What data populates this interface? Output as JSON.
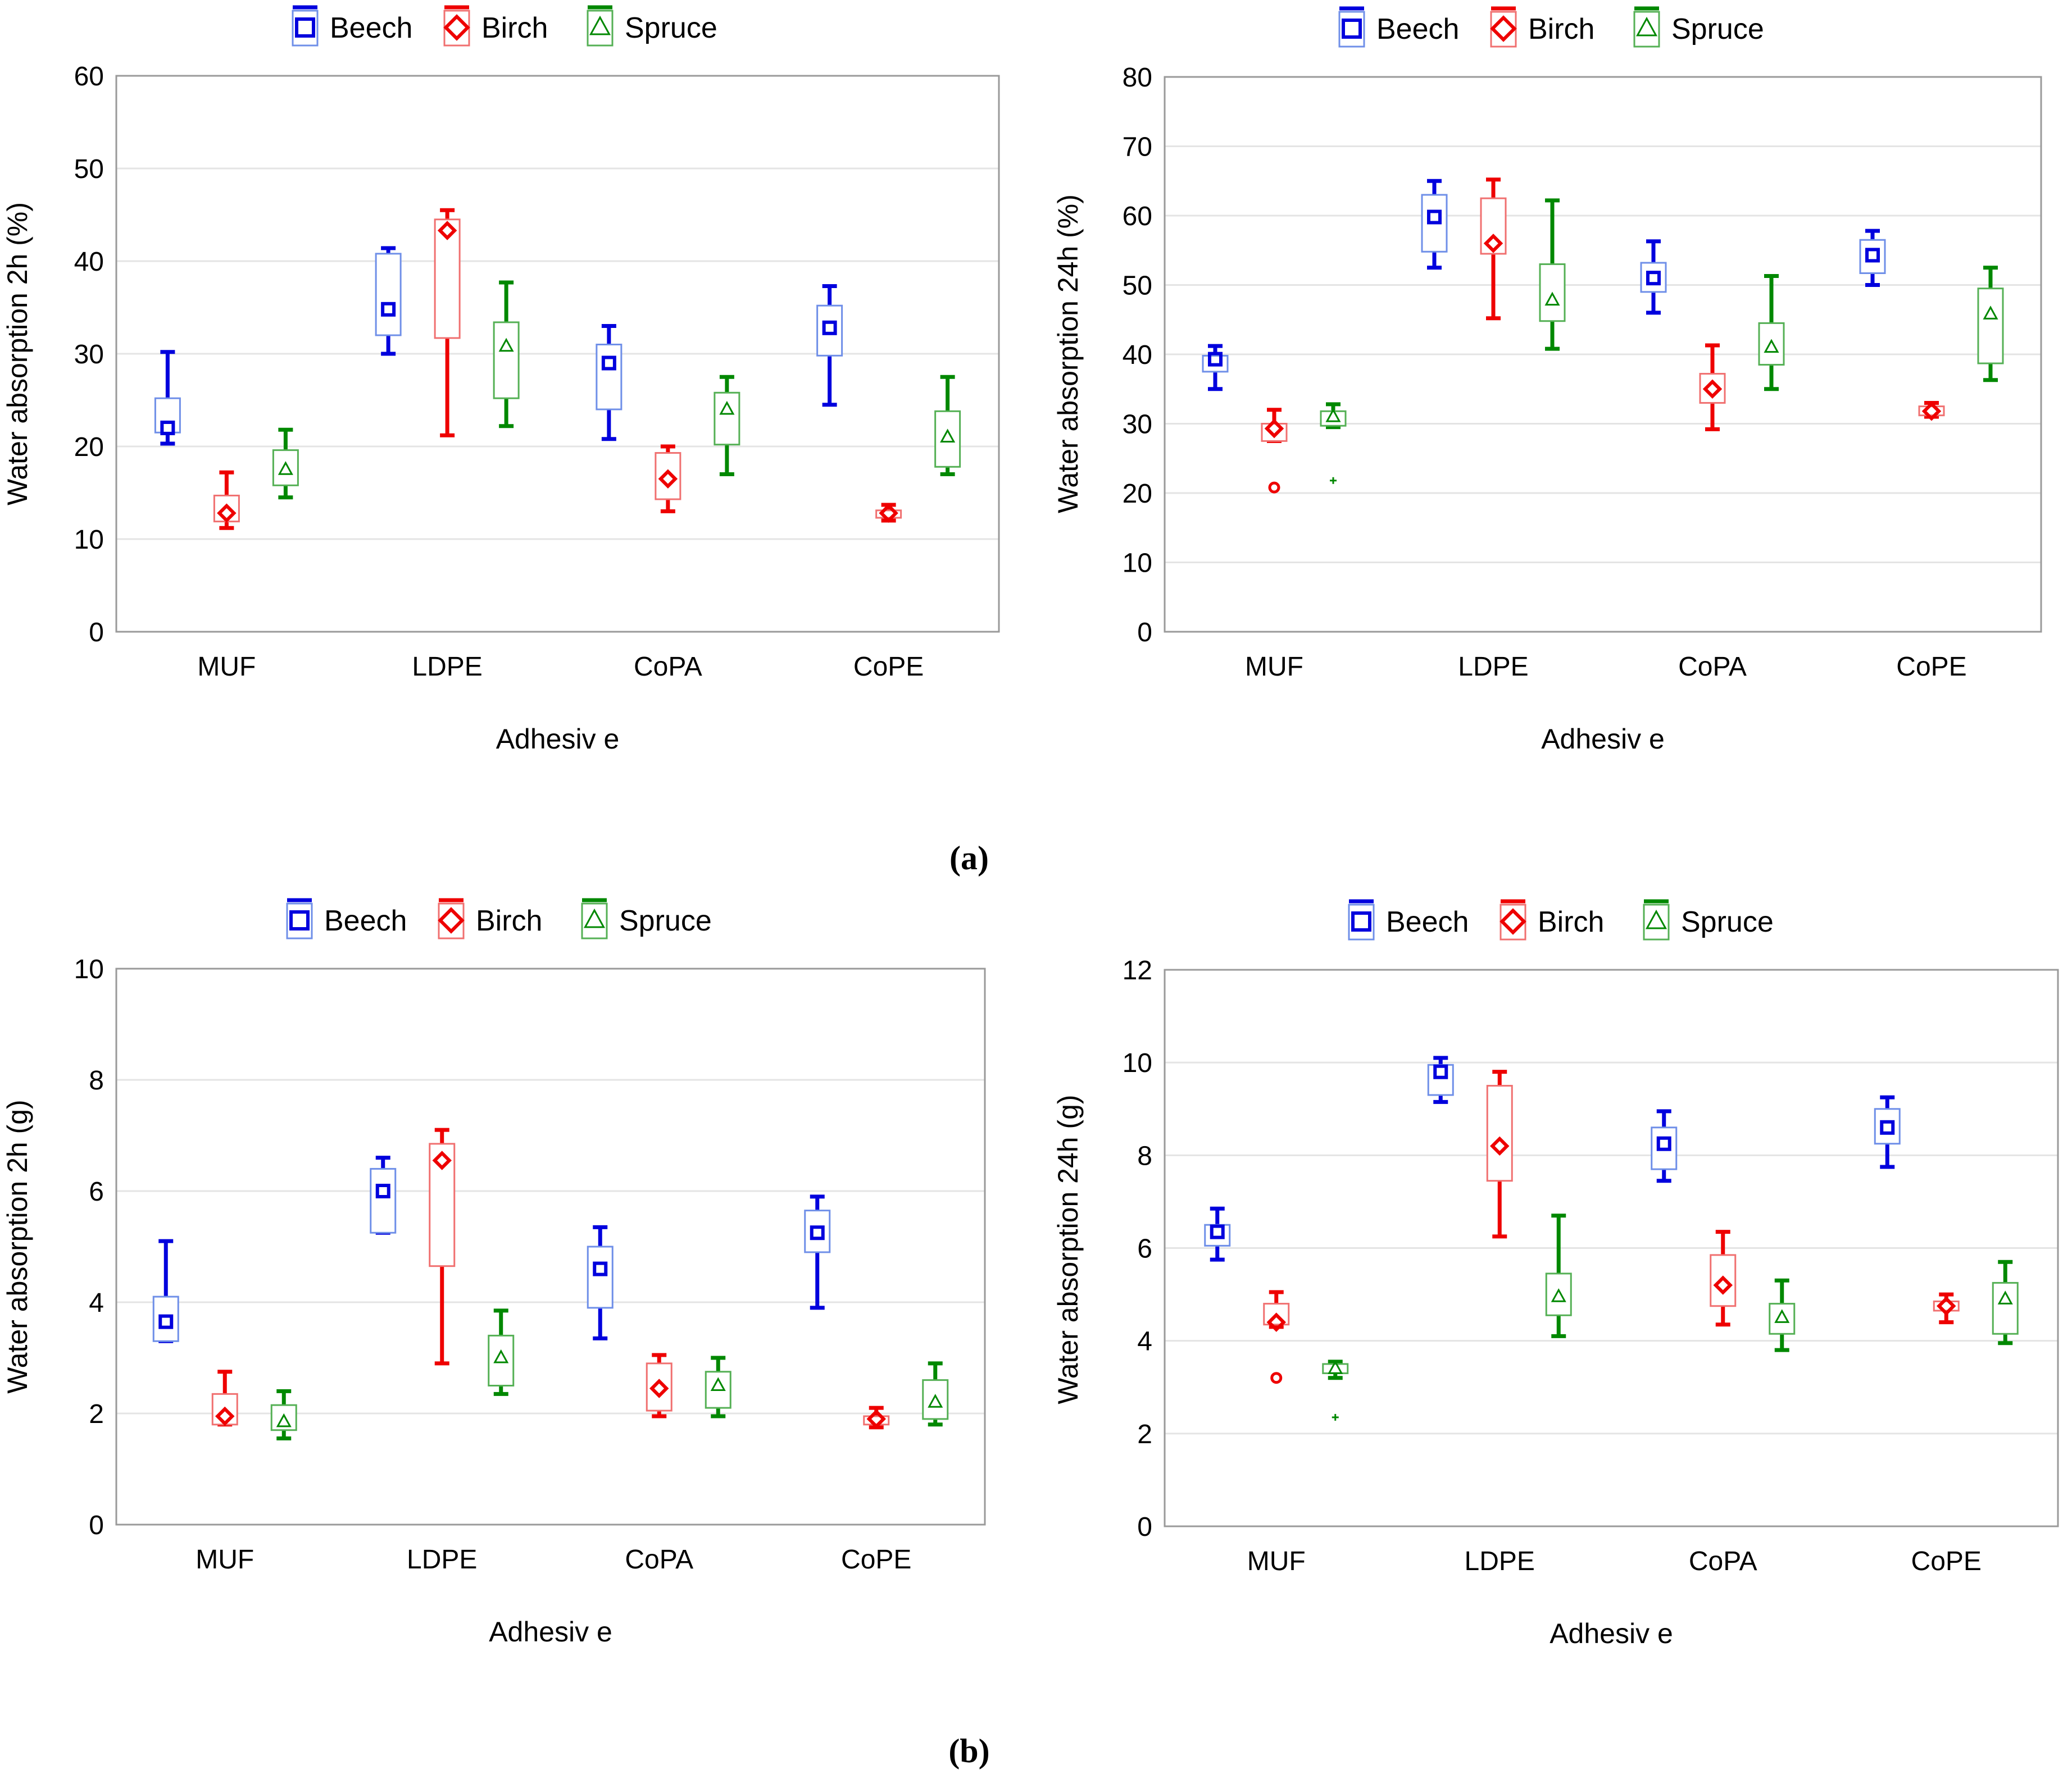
{
  "colors": {
    "beech": "#0000dd",
    "birch": "#ee0000",
    "spruce": "#008800",
    "beech_box": "#6f8fe8",
    "birch_box": "#f07070",
    "spruce_box": "#55b055",
    "grid": "#e4e4e4",
    "axis": "#9a9a9a"
  },
  "panel_labels": {
    "a": "(a)",
    "b": "(b)"
  },
  "chart_data": [
    {
      "type": "box",
      "title": "",
      "xlabel": "Adhesiv e",
      "ylabel": "Water absorption 2h (%)",
      "ylim": [
        0,
        60
      ],
      "yticks": [
        0,
        10,
        20,
        30,
        40,
        50,
        60
      ],
      "categories": [
        "MUF",
        "LDPE",
        "CoPA",
        "CoPE"
      ],
      "legend": [
        "Beech",
        "Birch",
        "Spruce"
      ],
      "series": [
        {
          "name": "Beech",
          "marker": "square",
          "boxes": [
            {
              "min": 20.3,
              "q1": 21.5,
              "median": 22.0,
              "q3": 25.2,
              "max": 30.2,
              "outliers": []
            },
            {
              "min": 30.0,
              "q1": 32.0,
              "median": 34.8,
              "q3": 40.8,
              "max": 41.4,
              "outliers": []
            },
            {
              "min": 20.8,
              "q1": 24.0,
              "median": 29.0,
              "q3": 31.0,
              "max": 33.0,
              "outliers": []
            },
            {
              "min": 24.5,
              "q1": 29.8,
              "median": 32.8,
              "q3": 35.2,
              "max": 37.3,
              "outliers": []
            }
          ]
        },
        {
          "name": "Birch",
          "marker": "diamond",
          "boxes": [
            {
              "min": 11.2,
              "q1": 11.9,
              "median": 12.8,
              "q3": 14.7,
              "max": 17.2,
              "outliers": []
            },
            {
              "min": 21.2,
              "q1": 31.7,
              "median": 43.3,
              "q3": 44.5,
              "max": 45.5,
              "outliers": []
            },
            {
              "min": 13.0,
              "q1": 14.3,
              "median": 16.5,
              "q3": 19.3,
              "max": 20.0,
              "outliers": []
            },
            {
              "min": 12.0,
              "q1": 12.3,
              "median": 12.8,
              "q3": 13.1,
              "max": 13.7,
              "outliers": []
            }
          ]
        },
        {
          "name": "Spruce",
          "marker": "triangle",
          "boxes": [
            {
              "min": 14.5,
              "q1": 15.8,
              "median": 17.5,
              "q3": 19.6,
              "max": 21.8,
              "outliers": []
            },
            {
              "min": 22.2,
              "q1": 25.2,
              "median": 30.8,
              "q3": 33.4,
              "max": 37.7,
              "outliers": []
            },
            {
              "min": 17.0,
              "q1": 20.2,
              "median": 24.0,
              "q3": 25.8,
              "max": 27.5,
              "outliers": []
            },
            {
              "min": 17.0,
              "q1": 17.8,
              "median": 21.0,
              "q3": 23.8,
              "max": 27.5,
              "outliers": []
            }
          ]
        }
      ]
    },
    {
      "type": "box",
      "title": "",
      "xlabel": "Adhesiv e",
      "ylabel": "Water absorption 24h (%)",
      "ylim": [
        0,
        80
      ],
      "yticks": [
        0,
        10,
        20,
        30,
        40,
        50,
        60,
        70,
        80
      ],
      "categories": [
        "MUF",
        "LDPE",
        "CoPA",
        "CoPE"
      ],
      "legend": [
        "Beech",
        "Birch",
        "Spruce"
      ],
      "series": [
        {
          "name": "Beech",
          "marker": "square",
          "boxes": [
            {
              "min": 35.0,
              "q1": 37.5,
              "median": 39.3,
              "q3": 39.8,
              "max": 41.2,
              "outliers": []
            },
            {
              "min": 52.5,
              "q1": 54.8,
              "median": 59.8,
              "q3": 63.0,
              "max": 65.0,
              "outliers": []
            },
            {
              "min": 46.0,
              "q1": 49.0,
              "median": 51.0,
              "q3": 53.2,
              "max": 56.3,
              "outliers": []
            },
            {
              "min": 50.0,
              "q1": 51.7,
              "median": 54.3,
              "q3": 56.5,
              "max": 57.8,
              "outliers": []
            }
          ]
        },
        {
          "name": "Birch",
          "marker": "diamond",
          "boxes": [
            {
              "min": 27.5,
              "q1": 27.5,
              "median": 29.3,
              "q3": 30.0,
              "max": 32.0,
              "outliers": [
                20.8
              ]
            },
            {
              "min": 45.2,
              "q1": 54.5,
              "median": 56.0,
              "q3": 62.5,
              "max": 65.2,
              "outliers": []
            },
            {
              "min": 29.2,
              "q1": 33.0,
              "median": 35.0,
              "q3": 37.2,
              "max": 41.3,
              "outliers": []
            },
            {
              "min": 31.0,
              "q1": 31.2,
              "median": 31.8,
              "q3": 32.5,
              "max": 33.0,
              "outliers": []
            }
          ]
        },
        {
          "name": "Spruce",
          "marker": "triangle",
          "boxes": [
            {
              "min": 29.5,
              "q1": 29.7,
              "median": 31.0,
              "q3": 31.8,
              "max": 32.8,
              "outliers": [
                21.8
              ]
            },
            {
              "min": 40.8,
              "q1": 44.8,
              "median": 47.8,
              "q3": 53.0,
              "max": 62.2,
              "outliers": []
            },
            {
              "min": 35.0,
              "q1": 38.5,
              "median": 41.0,
              "q3": 44.5,
              "max": 51.3,
              "outliers": []
            },
            {
              "min": 36.3,
              "q1": 38.7,
              "median": 45.8,
              "q3": 49.5,
              "max": 52.5,
              "outliers": []
            }
          ]
        }
      ]
    },
    {
      "type": "box",
      "title": "",
      "xlabel": "Adhesiv e",
      "ylabel": "Water absorption 2h (g)",
      "ylim": [
        0,
        10
      ],
      "yticks": [
        0,
        2,
        4,
        6,
        8,
        10
      ],
      "categories": [
        "MUF",
        "LDPE",
        "CoPA",
        "CoPE"
      ],
      "legend": [
        "Beech",
        "Birch",
        "Spruce"
      ],
      "series": [
        {
          "name": "Beech",
          "marker": "square",
          "boxes": [
            {
              "min": 3.3,
              "q1": 3.3,
              "median": 3.65,
              "q3": 4.1,
              "max": 5.1,
              "outliers": []
            },
            {
              "min": 5.25,
              "q1": 5.25,
              "median": 6.0,
              "q3": 6.4,
              "max": 6.6,
              "outliers": []
            },
            {
              "min": 3.35,
              "q1": 3.9,
              "median": 4.6,
              "q3": 5.0,
              "max": 5.35,
              "outliers": []
            },
            {
              "min": 3.9,
              "q1": 4.9,
              "median": 5.25,
              "q3": 5.65,
              "max": 5.9,
              "outliers": []
            }
          ]
        },
        {
          "name": "Birch",
          "marker": "diamond",
          "boxes": [
            {
              "min": 1.8,
              "q1": 1.8,
              "median": 1.95,
              "q3": 2.35,
              "max": 2.75,
              "outliers": []
            },
            {
              "min": 2.9,
              "q1": 4.65,
              "median": 6.55,
              "q3": 6.85,
              "max": 7.1,
              "outliers": []
            },
            {
              "min": 1.95,
              "q1": 2.05,
              "median": 2.45,
              "q3": 2.9,
              "max": 3.05,
              "outliers": []
            },
            {
              "min": 1.75,
              "q1": 1.8,
              "median": 1.9,
              "q3": 1.95,
              "max": 2.1,
              "outliers": []
            }
          ]
        },
        {
          "name": "Spruce",
          "marker": "triangle",
          "boxes": [
            {
              "min": 1.55,
              "q1": 1.7,
              "median": 1.85,
              "q3": 2.15,
              "max": 2.4,
              "outliers": []
            },
            {
              "min": 2.35,
              "q1": 2.5,
              "median": 3.0,
              "q3": 3.4,
              "max": 3.85,
              "outliers": []
            },
            {
              "min": 1.95,
              "q1": 2.1,
              "median": 2.5,
              "q3": 2.75,
              "max": 3.0,
              "outliers": []
            },
            {
              "min": 1.8,
              "q1": 1.9,
              "median": 2.2,
              "q3": 2.6,
              "max": 2.9,
              "outliers": []
            }
          ]
        }
      ]
    },
    {
      "type": "box",
      "title": "",
      "xlabel": "Adhesiv e",
      "ylabel": "Water absorption 24h (g)",
      "ylim": [
        0,
        12
      ],
      "yticks": [
        0,
        2,
        4,
        6,
        8,
        10,
        12
      ],
      "categories": [
        "MUF",
        "LDPE",
        "CoPA",
        "CoPE"
      ],
      "legend": [
        "Beech",
        "Birch",
        "Spruce"
      ],
      "series": [
        {
          "name": "Beech",
          "marker": "square",
          "boxes": [
            {
              "min": 5.75,
              "q1": 6.05,
              "median": 6.35,
              "q3": 6.5,
              "max": 6.85,
              "outliers": []
            },
            {
              "min": 9.15,
              "q1": 9.3,
              "median": 9.8,
              "q3": 9.95,
              "max": 10.1,
              "outliers": []
            },
            {
              "min": 7.45,
              "q1": 7.7,
              "median": 8.25,
              "q3": 8.6,
              "max": 8.95,
              "outliers": []
            },
            {
              "min": 7.75,
              "q1": 8.25,
              "median": 8.6,
              "q3": 9.0,
              "max": 9.25,
              "outliers": []
            }
          ]
        },
        {
          "name": "Birch",
          "marker": "diamond",
          "boxes": [
            {
              "min": 4.3,
              "q1": 4.35,
              "median": 4.4,
              "q3": 4.8,
              "max": 5.05,
              "outliers": [
                3.2
              ]
            },
            {
              "min": 6.25,
              "q1": 7.45,
              "median": 8.2,
              "q3": 9.5,
              "max": 9.8,
              "outliers": []
            },
            {
              "min": 4.35,
              "q1": 4.75,
              "median": 5.2,
              "q3": 5.85,
              "max": 6.35,
              "outliers": []
            },
            {
              "min": 4.4,
              "q1": 4.65,
              "median": 4.75,
              "q3": 4.85,
              "max": 5.0,
              "outliers": []
            }
          ]
        },
        {
          "name": "Spruce",
          "marker": "triangle",
          "boxes": [
            {
              "min": 3.2,
              "q1": 3.3,
              "median": 3.4,
              "q3": 3.5,
              "max": 3.55,
              "outliers": [
                2.35
              ]
            },
            {
              "min": 4.1,
              "q1": 4.55,
              "median": 4.95,
              "q3": 5.45,
              "max": 6.7,
              "outliers": []
            },
            {
              "min": 3.8,
              "q1": 4.15,
              "median": 4.5,
              "q3": 4.8,
              "max": 5.3,
              "outliers": []
            },
            {
              "min": 3.95,
              "q1": 4.15,
              "median": 4.9,
              "q3": 5.25,
              "max": 5.7,
              "outliers": []
            }
          ]
        }
      ]
    }
  ]
}
